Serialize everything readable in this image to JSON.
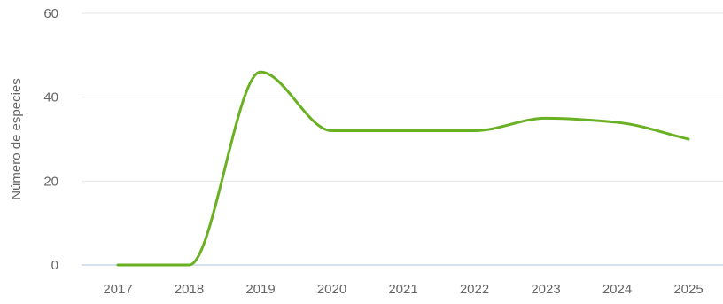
{
  "chart_data": {
    "type": "line",
    "title": "",
    "xlabel": "",
    "ylabel": "Número de especies",
    "x": [
      "2017",
      "2018",
      "2019",
      "2020",
      "2021",
      "2022",
      "2023",
      "2024",
      "2025"
    ],
    "series": [
      {
        "values": [
          0,
          0,
          46,
          32,
          32,
          32,
          35,
          34,
          30
        ],
        "color": "#6ab023"
      }
    ],
    "yticks": [
      "0",
      "20",
      "40",
      "60"
    ],
    "ylim": [
      0,
      60
    ],
    "grid": true,
    "legend": "none",
    "smooth": true
  }
}
